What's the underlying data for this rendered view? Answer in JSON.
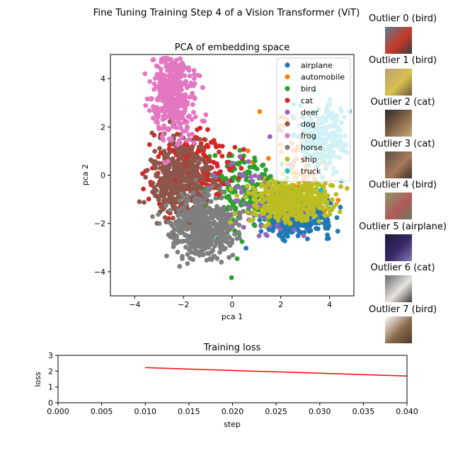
{
  "figure_title": "Fine Tuning Training Step 4 of a Vision Transformer (ViT)",
  "chart_data": [
    {
      "type": "scatter",
      "title": "PCA of embedding space",
      "xlabel": "pca 1",
      "ylabel": "pca 2",
      "xlim": [
        -5,
        5
      ],
      "ylim": [
        -5,
        5
      ],
      "xticks": [
        -4,
        -2,
        0,
        2,
        4
      ],
      "yticks": [
        -4,
        -2,
        0,
        2,
        4
      ],
      "legend_position": "top-right",
      "series": [
        {
          "name": "airplane",
          "color": "#1f77b4",
          "center": [
            2.6,
            -1.8
          ],
          "spread": [
            0.75,
            0.35
          ],
          "count": 300
        },
        {
          "name": "automobile",
          "color": "#ff7f0e",
          "center": [
            2.8,
            0.6
          ],
          "spread": [
            0.9,
            0.9
          ],
          "count": 70
        },
        {
          "name": "bird",
          "color": "#2ca02c",
          "center": [
            0.2,
            -0.6
          ],
          "spread": [
            1.0,
            0.9
          ],
          "count": 200
        },
        {
          "name": "cat",
          "color": "#d62728",
          "center": [
            -1.7,
            0.3
          ],
          "spread": [
            0.8,
            0.8
          ],
          "count": 230
        },
        {
          "name": "deer",
          "color": "#9467bd",
          "center": [
            0.9,
            -1.0
          ],
          "spread": [
            1.3,
            1.0
          ],
          "count": 80
        },
        {
          "name": "dog",
          "color": "#8c564b",
          "center": [
            -2.2,
            -0.2
          ],
          "spread": [
            0.55,
            0.8
          ],
          "count": 380
        },
        {
          "name": "frog",
          "color": "#e377c2",
          "center": [
            -2.4,
            3.5
          ],
          "spread": [
            0.45,
            1.0
          ],
          "count": 420
        },
        {
          "name": "horse",
          "color": "#7f7f7f",
          "center": [
            -1.2,
            -2.2
          ],
          "spread": [
            0.65,
            0.6
          ],
          "count": 450
        },
        {
          "name": "ship",
          "color": "#bcbd22",
          "center": [
            2.3,
            -1.1
          ],
          "spread": [
            0.8,
            0.45
          ],
          "count": 420
        },
        {
          "name": "truck",
          "color": "#17becf",
          "center": [
            3.7,
            1.5
          ],
          "spread": [
            0.55,
            0.7
          ],
          "count": 200
        }
      ]
    },
    {
      "type": "line",
      "title": "Training loss",
      "xlabel": "step",
      "ylabel": "loss",
      "xlim": [
        0,
        0.04
      ],
      "ylim": [
        0,
        3
      ],
      "xticks": [
        "0.000",
        "0.005",
        "0.010",
        "0.015",
        "0.020",
        "0.025",
        "0.030",
        "0.035",
        "0.040"
      ],
      "yticks": [
        "0",
        "1",
        "2",
        "3"
      ],
      "series": [
        {
          "name": "loss",
          "color": "#ff0000",
          "x": [
            0.01,
            0.04
          ],
          "y": [
            2.22,
            1.69
          ]
        }
      ]
    }
  ],
  "outliers": [
    {
      "label": "Outlier 0 (bird)",
      "colors": [
        "#5a7a8a",
        "#c83a2a",
        "#3a3a3a"
      ]
    },
    {
      "label": "Outlier 1 (bird)",
      "colors": [
        "#b8a070",
        "#d8c050",
        "#6a5a3a"
      ]
    },
    {
      "label": "Outlier 2 (cat)",
      "colors": [
        "#2a2a2a",
        "#8a6a4a",
        "#c8a878"
      ]
    },
    {
      "label": "Outlier 3 (cat)",
      "colors": [
        "#5a5048",
        "#a87a5a",
        "#3a3028"
      ]
    },
    {
      "label": "Outlier 4 (bird)",
      "colors": [
        "#8a9a6a",
        "#b05a5a",
        "#6a7a5a"
      ]
    },
    {
      "label": "Outlier 5 (airplane)",
      "colors": [
        "#1a1a3a",
        "#3a2a6a",
        "#8a7ab8"
      ]
    },
    {
      "label": "Outlier 6 (cat)",
      "colors": [
        "#6a6868",
        "#e8e4e0",
        "#3a3838"
      ]
    },
    {
      "label": "Outlier 7 (bird)",
      "colors": [
        "#ffffff",
        "#8a6a4a",
        "#4a3a2a"
      ]
    }
  ]
}
